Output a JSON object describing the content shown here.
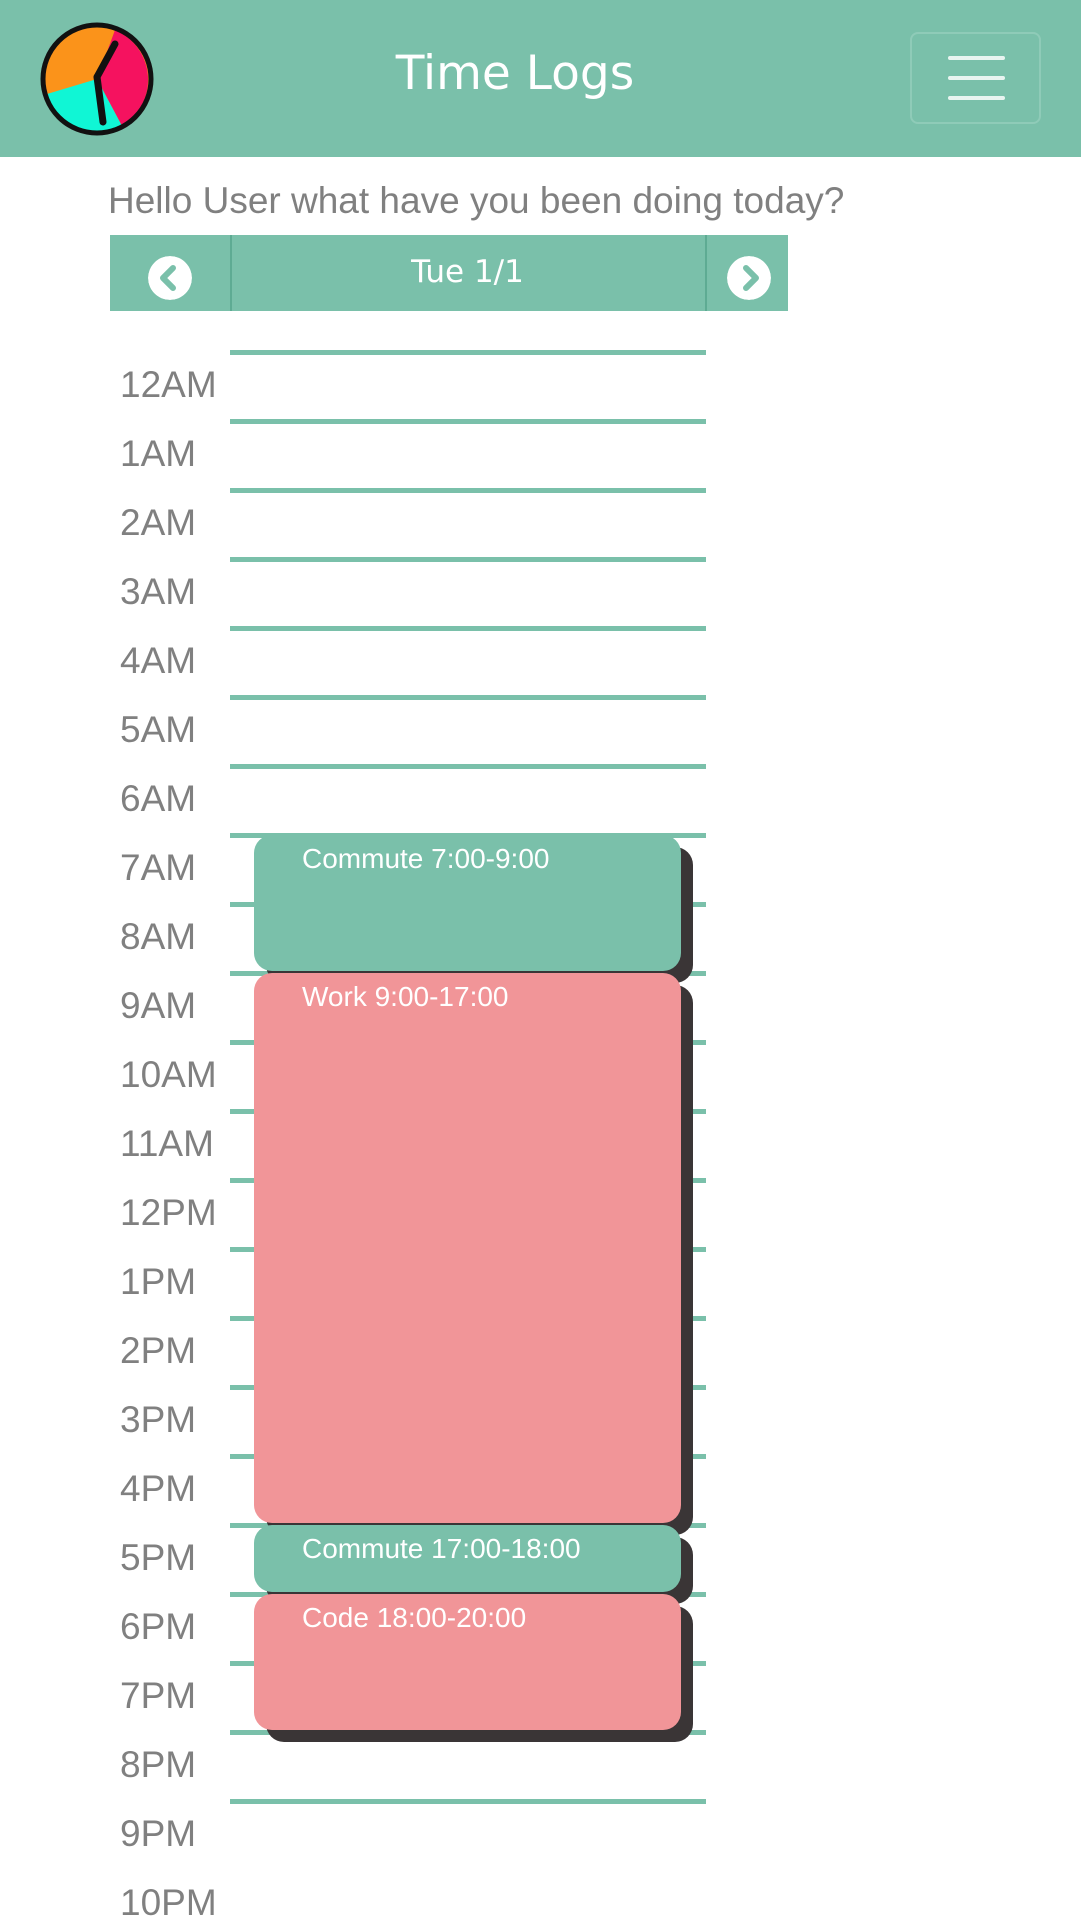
{
  "header": {
    "title": "Time Logs",
    "colors": {
      "bar": "#7ac0aa",
      "logo_orange": "#fb931a",
      "logo_pink": "#f5125f",
      "logo_cyan": "#10f6d5"
    },
    "icons": {
      "logo": "clock-logo-icon",
      "menu": "hamburger-menu-icon"
    }
  },
  "greeting": "Hello User what have you been doing today?",
  "date_nav": {
    "date": "Tue 1/1",
    "icons": {
      "prev": "chevron-left-icon",
      "next": "chevron-right-icon"
    }
  },
  "hours": [
    "12AM",
    "1AM",
    "2AM",
    "3AM",
    "4AM",
    "5AM",
    "6AM",
    "7AM",
    "8AM",
    "9AM",
    "10AM",
    "11AM",
    "12PM",
    "1PM",
    "2PM",
    "3PM",
    "4PM",
    "5PM",
    "6PM",
    "7PM",
    "8PM",
    "9PM",
    "10PM"
  ],
  "events": [
    {
      "label": "Commute 7:00-9:00",
      "start": 7,
      "end": 9,
      "color": "#7ac0aa"
    },
    {
      "label": "Work 9:00-17:00",
      "start": 9,
      "end": 17,
      "color": "#f19598"
    },
    {
      "label": "Commute 17:00-18:00",
      "start": 17,
      "end": 18,
      "color": "#7ac0aa"
    },
    {
      "label": "Code 18:00-20:00",
      "start": 18,
      "end": 20,
      "color": "#f19598"
    }
  ]
}
